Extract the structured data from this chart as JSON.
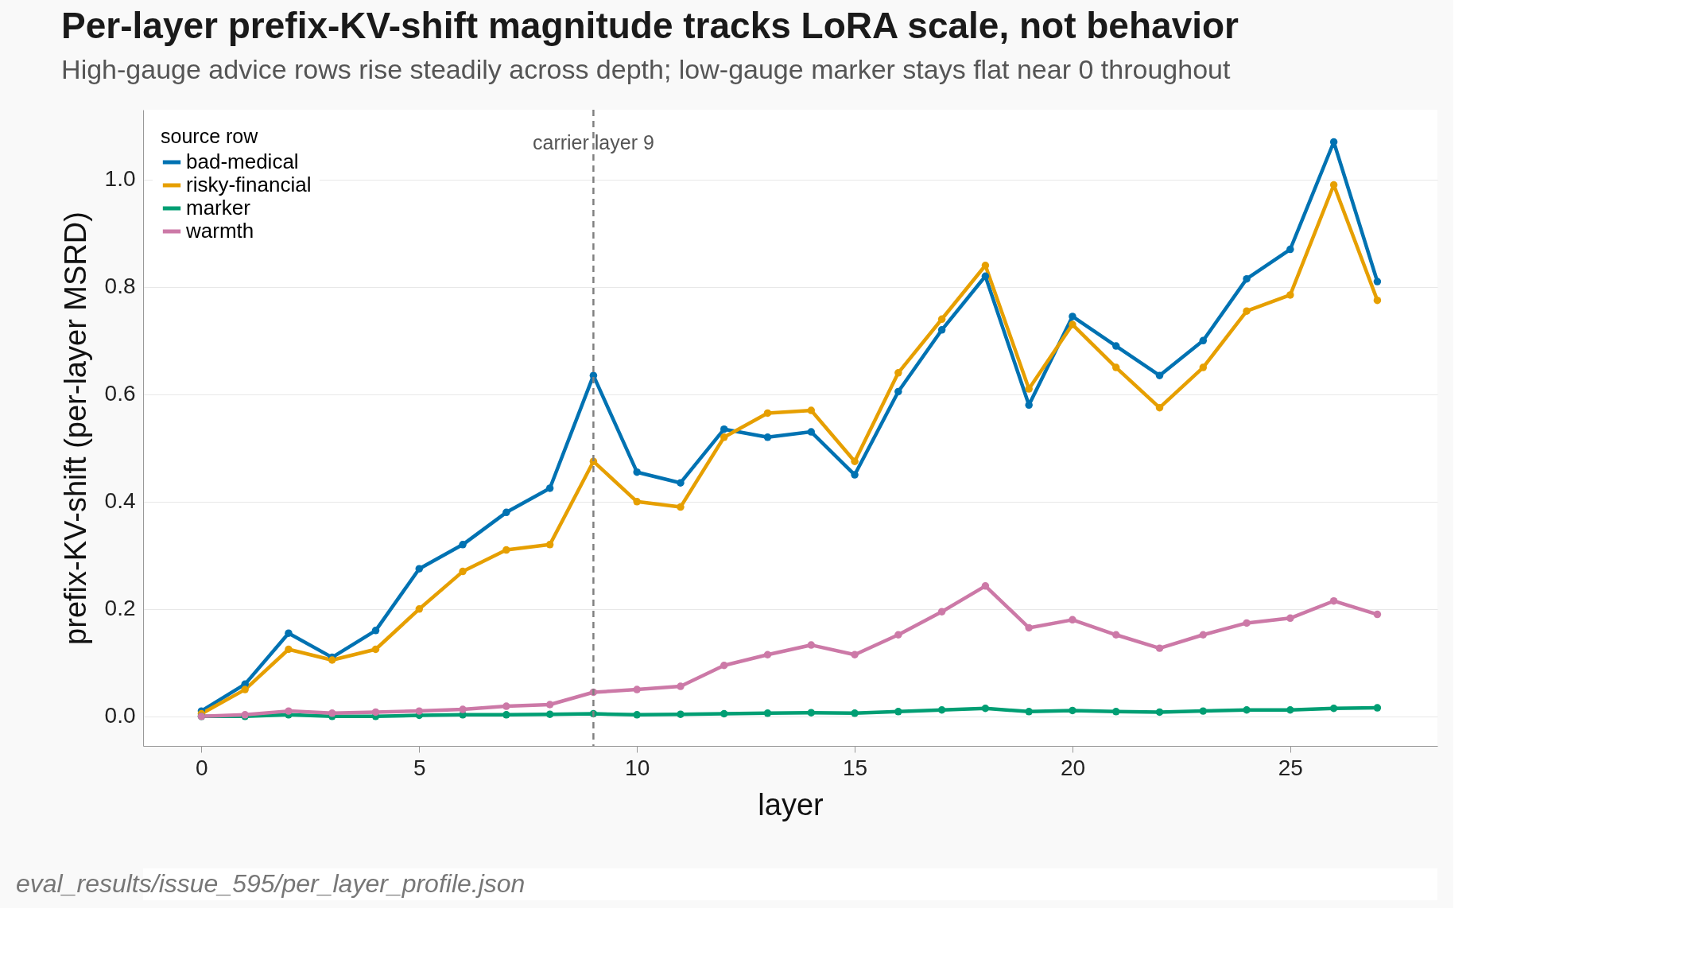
{
  "chart_data": {
    "type": "line",
    "title": "Per-layer prefix-KV-shift magnitude tracks LoRA scale, not behavior",
    "subtitle": "High-gauge advice rows rise steadily across depth; low-gauge marker stays flat near 0 throughout",
    "xlabel": "layer",
    "ylabel": "prefix-KV-shift (per-layer MSRD)",
    "legend_title": "source row",
    "x": [
      0,
      1,
      2,
      3,
      4,
      5,
      6,
      7,
      8,
      9,
      10,
      11,
      12,
      13,
      14,
      15,
      16,
      17,
      18,
      19,
      20,
      21,
      22,
      23,
      24,
      25,
      26,
      27
    ],
    "series": [
      {
        "name": "bad-medical",
        "color": "#0072b2",
        "values": [
          0.01,
          0.06,
          0.155,
          0.11,
          0.16,
          0.275,
          0.32,
          0.38,
          0.425,
          0.635,
          0.455,
          0.435,
          0.535,
          0.52,
          0.53,
          0.45,
          0.605,
          0.72,
          0.82,
          0.58,
          0.745,
          0.69,
          0.635,
          0.7,
          0.815,
          0.87,
          1.07,
          0.81
        ]
      },
      {
        "name": "risky-financial",
        "color": "#e69f00",
        "values": [
          0.005,
          0.05,
          0.125,
          0.105,
          0.125,
          0.2,
          0.27,
          0.31,
          0.32,
          0.475,
          0.4,
          0.39,
          0.52,
          0.565,
          0.57,
          0.475,
          0.64,
          0.74,
          0.84,
          0.61,
          0.73,
          0.65,
          0.575,
          0.65,
          0.755,
          0.785,
          0.99,
          0.775
        ]
      },
      {
        "name": "marker",
        "color": "#009e73",
        "values": [
          0,
          0,
          0.003,
          0,
          0,
          0.002,
          0.003,
          0.003,
          0.004,
          0.005,
          0.003,
          0.004,
          0.005,
          0.006,
          0.007,
          0.006,
          0.009,
          0.012,
          0.015,
          0.009,
          0.011,
          0.009,
          0.008,
          0.01,
          0.012,
          0.012,
          0.015,
          0.016
        ]
      },
      {
        "name": "warmth",
        "color": "#cc79a7",
        "values": [
          0,
          0.003,
          0.01,
          0.006,
          0.008,
          0.01,
          0.013,
          0.019,
          0.022,
          0.045,
          0.05,
          0.056,
          0.095,
          0.115,
          0.133,
          0.115,
          0.152,
          0.195,
          0.243,
          0.165,
          0.18,
          0.152,
          0.127,
          0.152,
          0.174,
          0.183,
          0.215,
          0.19
        ]
      }
    ],
    "xlim": [
      -1.34,
      28.38
    ],
    "ylim": [
      -0.055,
      1.13
    ],
    "xticks": [
      0,
      5,
      10,
      15,
      20,
      25
    ],
    "yticks": [
      {
        "value": 0,
        "label": "0.0"
      },
      0.2,
      0.4,
      0.6,
      0.8,
      {
        "value": 1,
        "label": "1.0"
      }
    ],
    "ref_lines": [
      {
        "axis": "x",
        "value": 9,
        "label": "carrier layer 9",
        "color": "#808080",
        "line_style": "dashed"
      }
    ],
    "annotations": [
      "eval_results/issue_595/per_layer_profile.json"
    ],
    "grid": "y",
    "legend": "top left",
    "marker": "circle",
    "line_style": "solid"
  }
}
